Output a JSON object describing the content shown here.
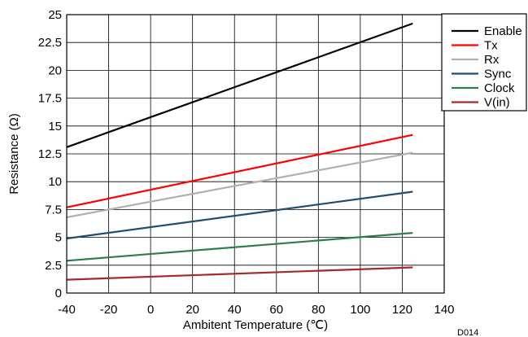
{
  "chart_data": {
    "type": "line",
    "xlabel": "Ambitent Temperature (℃)",
    "ylabel": "Resistance (Ω)",
    "watermark": "D014",
    "xlim": [
      -40,
      140
    ],
    "ylim": [
      0,
      25
    ],
    "x_ticks": [
      -40,
      -20,
      0,
      20,
      40,
      60,
      80,
      100,
      120,
      140
    ],
    "y_ticks": [
      0,
      2.5,
      5,
      7.5,
      10,
      12.5,
      15,
      17.5,
      20,
      22.5,
      25
    ],
    "x_tick_labels": [
      "-40",
      "-20",
      "0",
      "20",
      "40",
      "60",
      "80",
      "100",
      "120",
      "140"
    ],
    "y_tick_labels": [
      "0",
      "2.5",
      "5",
      "7.5",
      "10",
      "12.5",
      "15",
      "17.5",
      "20",
      "22.5",
      "25"
    ],
    "grid": true,
    "legend_position": "top-right",
    "series": [
      {
        "name": "Enable",
        "color": "#000000",
        "x": [
          -40,
          125
        ],
        "y": [
          13.1,
          24.2
        ]
      },
      {
        "name": "Tx",
        "color": "#ff0000",
        "x": [
          -40,
          125
        ],
        "y": [
          7.7,
          14.2
        ]
      },
      {
        "name": "Rx",
        "color": "#b0b0b0",
        "x": [
          -40,
          125
        ],
        "y": [
          6.8,
          12.6
        ]
      },
      {
        "name": "Sync",
        "color": "#1f4e6e",
        "x": [
          -40,
          125
        ],
        "y": [
          4.9,
          9.1
        ]
      },
      {
        "name": "Clock",
        "color": "#2e7d4f",
        "x": [
          -40,
          125
        ],
        "y": [
          2.9,
          5.4
        ]
      },
      {
        "name": "V(in)",
        "color": "#a52a2a",
        "x": [
          -40,
          125
        ],
        "y": [
          1.2,
          2.3
        ]
      }
    ]
  }
}
